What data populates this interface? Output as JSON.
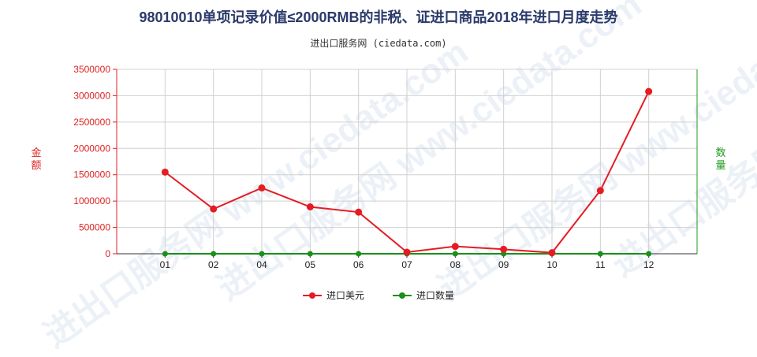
{
  "title": "98010010单项记录价值≤2000RMB的非税、证进口商品2018年进口月度走势",
  "subtitle": "进出口服务网 (ciedata.com)",
  "watermark": "进出口服务网 www.ciedata.com",
  "legend": {
    "amount_label": "进口美元",
    "quantity_label": "进口数量"
  },
  "colors": {
    "amount": "#e51c23",
    "quantity": "#1a8f1a",
    "left_axis": "#dd2222",
    "right_axis": "#229922",
    "grid": "#d0d0d0"
  },
  "chart_data": {
    "type": "line",
    "title": "98010010单项记录价值≤2000RMB的非税、证进口商品2018年进口月度走势",
    "ylabel": "金额",
    "ylabel_right": "数量",
    "categories": [
      "01",
      "02",
      "04",
      "05",
      "06",
      "07",
      "08",
      "09",
      "10",
      "11",
      "12"
    ],
    "ylim": [
      0,
      3500000
    ],
    "yticks": [
      "3500000",
      "3000000",
      "2500000",
      "2000000",
      "1500000",
      "1000000",
      "500000",
      "0"
    ],
    "grid": true,
    "legend_position": "bottom",
    "series": [
      {
        "name": "进口美元",
        "axis": "left",
        "values": [
          1550000,
          850000,
          1250000,
          890000,
          790000,
          30000,
          140000,
          85000,
          20000,
          1200000,
          3080000
        ]
      },
      {
        "name": "进口数量",
        "axis": "right",
        "values": [
          0,
          0,
          0,
          0,
          0,
          0,
          0,
          0,
          0,
          0,
          0
        ]
      }
    ]
  }
}
